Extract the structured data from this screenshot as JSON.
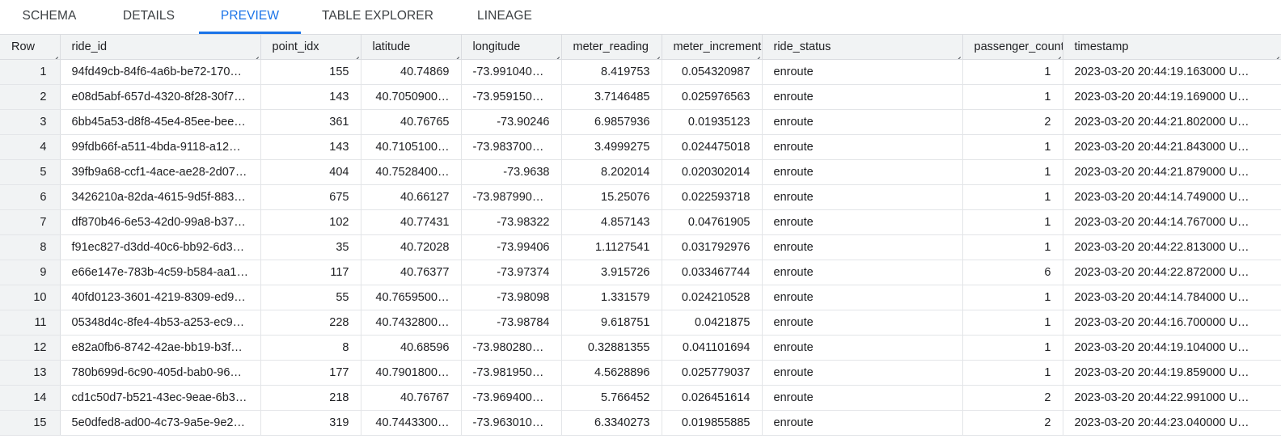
{
  "tabs": [
    {
      "label": "SCHEMA",
      "active": false
    },
    {
      "label": "DETAILS",
      "active": false
    },
    {
      "label": "PREVIEW",
      "active": true
    },
    {
      "label": "TABLE EXPLORER",
      "active": false
    },
    {
      "label": "LINEAGE",
      "active": false
    }
  ],
  "colors": {
    "accent": "#1a73e8",
    "header_bg": "#f1f3f4",
    "border": "#dadce0"
  },
  "table": {
    "columns": [
      {
        "label": "Row",
        "align": "right"
      },
      {
        "label": "ride_id",
        "align": "left"
      },
      {
        "label": "point_idx",
        "align": "right"
      },
      {
        "label": "latitude",
        "align": "right"
      },
      {
        "label": "longitude",
        "align": "right"
      },
      {
        "label": "meter_reading",
        "align": "right"
      },
      {
        "label": "meter_increment",
        "align": "right"
      },
      {
        "label": "ride_status",
        "align": "left"
      },
      {
        "label": "passenger_count",
        "align": "right"
      },
      {
        "label": "timestamp",
        "align": "left"
      }
    ],
    "rows": [
      [
        "1",
        "94fd49cb-84f6-4a6b-be72-170…",
        "155",
        "40.74869",
        "-73.9910400…",
        "8.419753",
        "0.054320987",
        "enroute",
        "1",
        "2023-03-20 20:44:19.163000 U…"
      ],
      [
        "2",
        "e08d5abf-657d-4320-8f28-30f7…",
        "143",
        "40.7050900…",
        "-73.9591500…",
        "3.7146485",
        "0.025976563",
        "enroute",
        "1",
        "2023-03-20 20:44:19.169000 U…"
      ],
      [
        "3",
        "6bb45a53-d8f8-45e4-85ee-bee…",
        "361",
        "40.76765",
        "-73.90246",
        "6.9857936",
        "0.01935123",
        "enroute",
        "2",
        "2023-03-20 20:44:21.802000 U…"
      ],
      [
        "4",
        "99fdb66f-a511-4bda-9118-a12…",
        "143",
        "40.7105100…",
        "-73.9837000…",
        "3.4999275",
        "0.024475018",
        "enroute",
        "1",
        "2023-03-20 20:44:21.843000 U…"
      ],
      [
        "5",
        "39fb9a68-ccf1-4ace-ae28-2d07…",
        "404",
        "40.7528400…",
        "-73.9638",
        "8.202014",
        "0.020302014",
        "enroute",
        "1",
        "2023-03-20 20:44:21.879000 U…"
      ],
      [
        "6",
        "3426210a-82da-4615-9d5f-883…",
        "675",
        "40.66127",
        "-73.9879900…",
        "15.25076",
        "0.022593718",
        "enroute",
        "1",
        "2023-03-20 20:44:14.749000 U…"
      ],
      [
        "7",
        "df870b46-6e53-42d0-99a8-b37…",
        "102",
        "40.77431",
        "-73.98322",
        "4.857143",
        "0.04761905",
        "enroute",
        "1",
        "2023-03-20 20:44:14.767000 U…"
      ],
      [
        "8",
        "f91ec827-d3dd-40c6-bb92-6d3…",
        "35",
        "40.72028",
        "-73.99406",
        "1.1127541",
        "0.031792976",
        "enroute",
        "1",
        "2023-03-20 20:44:22.813000 U…"
      ],
      [
        "9",
        "e66e147e-783b-4c59-b584-aa1…",
        "117",
        "40.76377",
        "-73.97374",
        "3.915726",
        "0.033467744",
        "enroute",
        "6",
        "2023-03-20 20:44:22.872000 U…"
      ],
      [
        "10",
        "40fd0123-3601-4219-8309-ed9…",
        "55",
        "40.7659500…",
        "-73.98098",
        "1.331579",
        "0.024210528",
        "enroute",
        "1",
        "2023-03-20 20:44:14.784000 U…"
      ],
      [
        "11",
        "05348d4c-8fe4-4b53-a253-ec9…",
        "228",
        "40.7432800…",
        "-73.98784",
        "9.618751",
        "0.0421875",
        "enroute",
        "1",
        "2023-03-20 20:44:16.700000 U…"
      ],
      [
        "12",
        "e82a0fb6-8742-42ae-bb19-b3f…",
        "8",
        "40.68596",
        "-73.9802800…",
        "0.32881355",
        "0.041101694",
        "enroute",
        "1",
        "2023-03-20 20:44:19.104000 U…"
      ],
      [
        "13",
        "780b699d-6c90-405d-bab0-96…",
        "177",
        "40.7901800…",
        "-73.9819500…",
        "4.5628896",
        "0.025779037",
        "enroute",
        "1",
        "2023-03-20 20:44:19.859000 U…"
      ],
      [
        "14",
        "cd1c50d7-b521-43ec-9eae-6b3…",
        "218",
        "40.76767",
        "-73.9694000…",
        "5.766452",
        "0.026451614",
        "enroute",
        "2",
        "2023-03-20 20:44:22.991000 U…"
      ],
      [
        "15",
        "5e0dfed8-ad00-4c73-9a5e-9e2…",
        "319",
        "40.7443300…",
        "-73.9630100…",
        "6.3340273",
        "0.019855885",
        "enroute",
        "2",
        "2023-03-20 20:44:23.040000 U…"
      ]
    ]
  }
}
